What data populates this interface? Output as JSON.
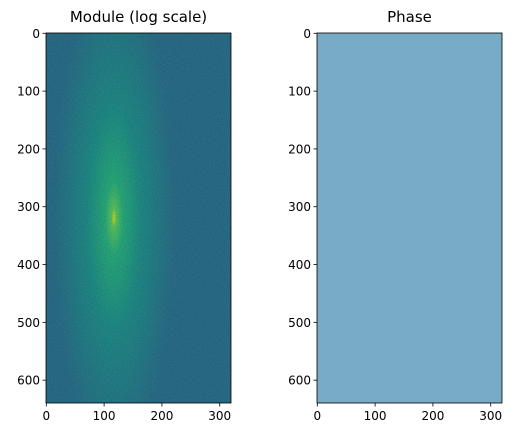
{
  "chart_data": [
    {
      "type": "image",
      "title": "Module (log scale)",
      "colormap": "viridis",
      "xlim": [
        -0.5,
        319.5
      ],
      "ylim": [
        639.5,
        -0.5
      ],
      "xticks": [
        0,
        100,
        200,
        300
      ],
      "yticks": [
        0,
        100,
        200,
        300,
        400,
        500,
        600
      ]
    },
    {
      "type": "image",
      "title": "Phase",
      "colormap": "viridis",
      "xlim": [
        -0.5,
        319.5
      ],
      "ylim": [
        639.5,
        -0.5
      ],
      "xticks": [
        0,
        100,
        200,
        300
      ],
      "yticks": [
        0,
        100,
        200,
        300,
        400,
        500,
        600
      ]
    }
  ]
}
